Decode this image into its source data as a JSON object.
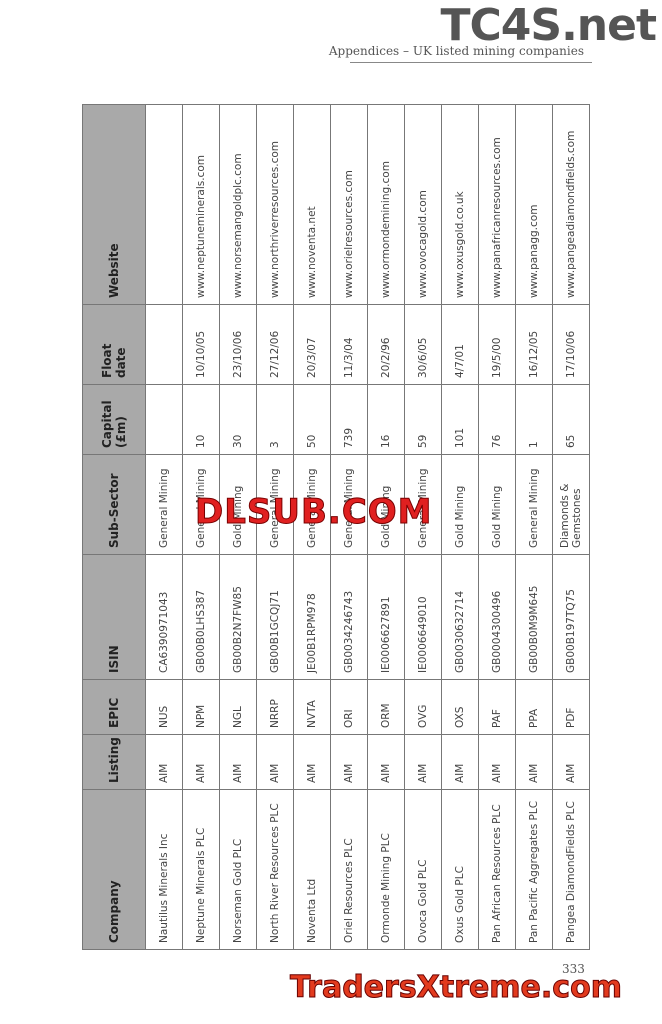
{
  "header": {
    "title": "Appendices – UK listed mining companies",
    "watermark": "TC4S.net"
  },
  "table": {
    "columns": [
      "Company",
      "Listing",
      "EPIC",
      "ISIN",
      "Sub-Sector",
      "Capital (£m)",
      "Float date",
      "Website"
    ],
    "rows": [
      [
        "Nautilus Minerals Inc",
        "AIM",
        "NUS",
        "CA6390971043",
        "General Mining",
        null,
        null,
        null
      ],
      [
        "Neptune Minerals PLC",
        "AIM",
        "NPM",
        "GB00B0LHS387",
        "General Mining",
        10,
        "10/10/05",
        "www.neptuneminerals.com"
      ],
      [
        "Norseman Gold PLC",
        "AIM",
        "NGL",
        "GB00B2N7FW85",
        "Gold Mining",
        30,
        "23/10/06",
        "www.norsemangoldplc.com"
      ],
      [
        "North River Resources PLC",
        "AIM",
        "NRRP",
        "GB00B1GCQJ71",
        "General Mining",
        3,
        "27/12/06",
        "www.northriverresources.com"
      ],
      [
        "Noventa Ltd",
        "AIM",
        "NVTA",
        "JE00B1RPM978",
        "General Mining",
        50,
        "20/3/07",
        "www.noventa.net"
      ],
      [
        "Oriel Resources PLC",
        "AIM",
        "ORI",
        "GB0034246743",
        "General Mining",
        739,
        "11/3/04",
        "www.orielresources.com"
      ],
      [
        "Ormonde Mining PLC",
        "AIM",
        "ORM",
        "IE0006627891",
        "Gold Mining",
        16,
        "20/2/96",
        "www.ormondemining.com"
      ],
      [
        "Ovoca Gold PLC",
        "AIM",
        "OVG",
        "IE0006649010",
        "General Mining",
        59,
        "30/6/05",
        "www.ovocagold.com"
      ],
      [
        "Oxus Gold PLC",
        "AIM",
        "OXS",
        "GB0030632714",
        "Gold Mining",
        101,
        "4/7/01",
        "www.oxusgold.co.uk"
      ],
      [
        "Pan African Resources PLC",
        "AIM",
        "PAF",
        "GB0004300496",
        "Gold Mining",
        76,
        "19/5/00",
        "www.panafricanresources.com"
      ],
      [
        "Pan Pacific Aggregates PLC",
        "AIM",
        "PPA",
        "GB00B0M9M645",
        "General Mining",
        1,
        "16/12/05",
        "www.panagg.com"
      ],
      [
        "Pangea DiamondFields PLC",
        "AIM",
        "PDF",
        "GB00B197TQ75",
        "Diamonds & Gemstones",
        65,
        "17/10/06",
        "www.pangeadiamondfields.com"
      ]
    ]
  },
  "watermarks": [
    "DLSUB.COM",
    "TradersXtreme.com"
  ],
  "footer": {
    "page_number": "333"
  }
}
